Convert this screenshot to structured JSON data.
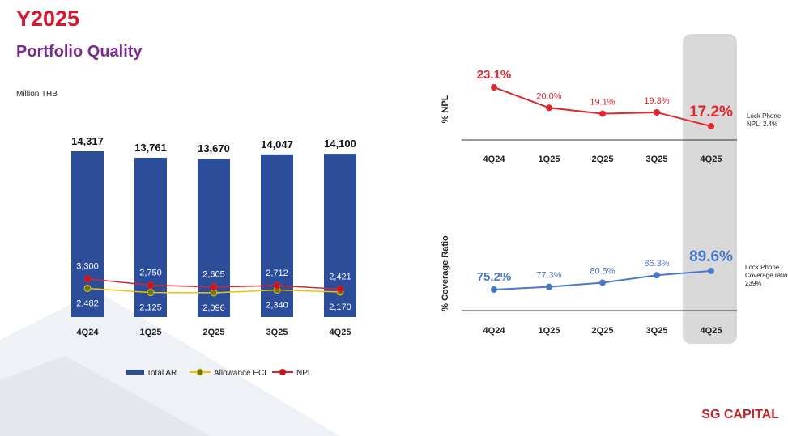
{
  "title": "Y2025",
  "subtitle": "Portfolio Quality",
  "logo": "SG CAPITAL",
  "chart_data": [
    {
      "type": "bar",
      "unit": "Million THB",
      "categories": [
        "4Q24",
        "1Q25",
        "2Q25",
        "3Q25",
        "4Q25"
      ],
      "ylim": [
        0,
        15000
      ],
      "series": [
        {
          "name": "Total AR",
          "type": "bar",
          "color": "#2b4d9a",
          "values": [
            14317,
            13761,
            13670,
            14047,
            14100
          ],
          "value_labels": [
            "14,317",
            "13,761",
            "13,670",
            "14,047",
            "14,100"
          ]
        },
        {
          "name": "Allowance ECL",
          "type": "line",
          "color": "#f2c200",
          "marker": "#6b7a1f",
          "values": [
            2482,
            2125,
            2096,
            2340,
            2170
          ],
          "value_labels": [
            "2,482",
            "2,125",
            "2,096",
            "2,340",
            "2,170"
          ]
        },
        {
          "name": "NPL",
          "type": "line",
          "color": "#d7262e",
          "marker": "#c4161c",
          "values": [
            3300,
            2750,
            2605,
            2712,
            2421
          ],
          "value_labels": [
            "3,300",
            "2,750",
            "2,605",
            "2,712",
            "2,421"
          ]
        }
      ]
    },
    {
      "type": "line",
      "ylabel": "% NPL",
      "categories": [
        "4Q24",
        "1Q25",
        "2Q25",
        "3Q25",
        "4Q25"
      ],
      "ylim": [
        15,
        25
      ],
      "color": "#e0262f",
      "values": [
        23.1,
        20.0,
        19.1,
        19.3,
        17.2
      ],
      "value_labels": [
        "23.1%",
        "20.0%",
        "19.1%",
        "19.3%",
        "17.2%"
      ],
      "annotations": [
        "Lock Phone",
        "NPL: 2.4%"
      ]
    },
    {
      "type": "line",
      "ylabel": "% Coverage Ratio",
      "categories": [
        "4Q24",
        "1Q25",
        "2Q25",
        "3Q25",
        "4Q25"
      ],
      "ylim": [
        60,
        100
      ],
      "color": "#4a78c8",
      "values": [
        75.2,
        77.3,
        80.5,
        86.3,
        89.6
      ],
      "value_labels": [
        "75.2%",
        "77.3%",
        "80.5%",
        "86.3%",
        "89.6%"
      ],
      "annotations": [
        "Lock Phone",
        "Coverage ratio",
        "239%"
      ]
    }
  ]
}
